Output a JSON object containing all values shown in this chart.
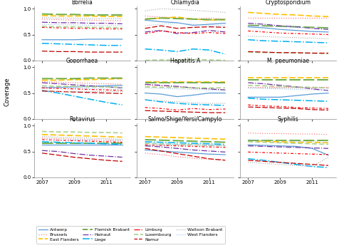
{
  "years": [
    2007,
    2008,
    2009,
    2010,
    2011,
    2012
  ],
  "panels": [
    "Borrelia",
    "Chlamydia",
    "Cryptosporidium",
    "Gonorrhaea",
    "Hepatitis A",
    "M. pneumoniae",
    "Rotavirus",
    "Salmo/Shige/Yersi/Campylo",
    "Syphilis"
  ],
  "provinces": [
    "Antwerp",
    "Brussels",
    "East Flanders",
    "Flemish Brabant",
    "Hainaut",
    "Liege",
    "Limburg",
    "Luxembourg",
    "Namur",
    "Walloon Brabant",
    "West Flanders"
  ],
  "styles": {
    "Antwerp": {
      "color": "#5B9BD5",
      "ls": "-",
      "lw": 0.9,
      "dashes": null
    },
    "Brussels": {
      "color": "#FF7F7F",
      "ls": "dotted",
      "lw": 0.9,
      "dashes": null
    },
    "East Flanders": {
      "color": "#FFC000",
      "ls": "dashed",
      "lw": 1.2,
      "dashes": [
        5,
        2
      ]
    },
    "Flemish Brabant": {
      "color": "#70AD47",
      "ls": "dashed",
      "lw": 1.4,
      "dashes": [
        8,
        2
      ]
    },
    "Hainaut": {
      "color": "#7030A0",
      "ls": "dashdot",
      "lw": 0.9,
      "dashes": null
    },
    "Liege": {
      "color": "#00B0F0",
      "ls": "dashdot",
      "lw": 1.1,
      "dashes": null
    },
    "Limburg": {
      "color": "#FF0000",
      "ls": "dashdot",
      "lw": 0.9,
      "dashes": [
        3,
        2,
        1,
        2
      ]
    },
    "Luxembourg": {
      "color": "#A9D18E",
      "ls": "dashed",
      "lw": 1.2,
      "dashes": [
        4,
        2,
        4,
        2
      ]
    },
    "Namur": {
      "color": "#C00000",
      "ls": "dashed",
      "lw": 0.9,
      "dashes": [
        6,
        2
      ]
    },
    "Walloon Brabant": {
      "color": "#A6A6A6",
      "ls": "dotted",
      "lw": 0.8,
      "dashes": null
    },
    "West Flanders": {
      "color": "#9DC3E6",
      "ls": "dotted",
      "lw": 0.8,
      "dashes": null
    }
  },
  "data": {
    "Borrelia": {
      "Antwerp": [
        0.4,
        0.4,
        0.4,
        0.41,
        0.41,
        0.41
      ],
      "Brussels": [
        0.8,
        0.79,
        0.78,
        0.78,
        0.77,
        0.77
      ],
      "East Flanders": [
        0.87,
        0.86,
        0.86,
        0.86,
        0.85,
        0.85
      ],
      "Flemish Brabant": [
        0.9,
        0.89,
        0.89,
        0.88,
        0.88,
        0.88
      ],
      "Hainaut": [
        0.74,
        0.73,
        0.73,
        0.72,
        0.72,
        0.71
      ],
      "Liege": [
        0.33,
        0.32,
        0.31,
        0.3,
        0.29,
        0.29
      ],
      "Limburg": [
        0.64,
        0.63,
        0.62,
        0.62,
        0.61,
        0.61
      ],
      "Luxembourg": [
        0.66,
        0.65,
        0.65,
        0.64,
        0.64,
        0.63
      ],
      "Namur": [
        0.18,
        0.17,
        0.17,
        0.16,
        0.16,
        0.16
      ],
      "Walloon Brabant": [
        0.83,
        0.82,
        0.82,
        0.81,
        0.81,
        0.81
      ],
      "West Flanders": [
        0.7,
        0.69,
        0.69,
        0.68,
        0.68,
        0.67
      ]
    },
    "Chlamydia": {
      "Antwerp": [
        0.78,
        0.75,
        0.73,
        0.68,
        0.7,
        0.72
      ],
      "Brussels": [
        0.86,
        0.84,
        0.82,
        0.8,
        0.82,
        0.8
      ],
      "East Flanders": [
        0.8,
        0.82,
        0.84,
        0.8,
        0.78,
        0.79
      ],
      "Flemish Brabant": [
        0.8,
        0.82,
        0.81,
        0.8,
        0.79,
        0.79
      ],
      "Hainaut": [
        0.55,
        0.58,
        0.52,
        0.54,
        0.58,
        0.55
      ],
      "Liege": [
        0.22,
        0.2,
        0.17,
        0.22,
        0.2,
        0.12
      ],
      "Limburg": [
        0.52,
        0.57,
        0.54,
        0.52,
        0.54,
        0.52
      ],
      "Luxembourg": [
        0.0,
        0.01,
        0.0,
        0.02,
        0.01,
        0.0
      ],
      "Namur": [
        0.62,
        0.67,
        0.62,
        0.64,
        0.65,
        0.64
      ],
      "Walloon Brabant": [
        0.96,
        1.0,
        0.99,
        0.97,
        0.95,
        0.93
      ],
      "West Flanders": [
        0.67,
        0.7,
        0.72,
        0.7,
        0.67,
        0.68
      ]
    },
    "Cryptosporidium": {
      "Antwerp": [
        0.65,
        0.63,
        0.6,
        0.58,
        0.56,
        0.55
      ],
      "Brussels": [
        0.82,
        0.82,
        0.82,
        0.82,
        0.82,
        0.82
      ],
      "East Flanders": [
        0.93,
        0.91,
        0.89,
        0.88,
        0.86,
        0.85
      ],
      "Flemish Brabant": [
        0.68,
        0.67,
        0.66,
        0.65,
        0.64,
        0.63
      ],
      "Hainaut": [
        0.72,
        0.7,
        0.67,
        0.65,
        0.62,
        0.6
      ],
      "Liege": [
        0.4,
        0.38,
        0.37,
        0.36,
        0.35,
        0.34
      ],
      "Limburg": [
        0.57,
        0.55,
        0.53,
        0.52,
        0.51,
        0.5
      ],
      "Luxembourg": [
        0.16,
        0.15,
        0.15,
        0.14,
        0.14,
        0.13
      ],
      "Namur": [
        0.17,
        0.16,
        0.15,
        0.15,
        0.14,
        0.14
      ],
      "Walloon Brabant": [
        0.47,
        0.46,
        0.45,
        0.44,
        0.43,
        0.42
      ],
      "West Flanders": [
        0.67,
        0.66,
        0.65,
        0.64,
        0.63,
        0.62
      ]
    },
    "Gonorrhaea": {
      "Antwerp": [
        0.6,
        0.61,
        0.62,
        0.63,
        0.64,
        0.65
      ],
      "Brussels": [
        0.72,
        0.71,
        0.7,
        0.69,
        0.68,
        0.67
      ],
      "East Flanders": [
        0.75,
        0.75,
        0.76,
        0.76,
        0.77,
        0.78
      ],
      "Flemish Brabant": [
        0.78,
        0.78,
        0.78,
        0.79,
        0.79,
        0.79
      ],
      "Hainaut": [
        0.7,
        0.68,
        0.66,
        0.64,
        0.62,
        0.6
      ],
      "Liege": [
        0.55,
        0.5,
        0.44,
        0.38,
        0.32,
        0.27
      ],
      "Limburg": [
        0.6,
        0.59,
        0.58,
        0.57,
        0.56,
        0.55
      ],
      "Luxembourg": [
        0.64,
        0.63,
        0.63,
        0.62,
        0.62,
        0.61
      ],
      "Namur": [
        0.54,
        0.53,
        0.52,
        0.51,
        0.5,
        0.49
      ],
      "Walloon Brabant": [
        0.54,
        0.54,
        0.54,
        0.54,
        0.54,
        0.54
      ],
      "West Flanders": [
        0.62,
        0.61,
        0.6,
        0.59,
        0.58,
        0.57
      ]
    },
    "Hepatitis A": {
      "Antwerp": [
        0.5,
        0.48,
        0.43,
        0.46,
        0.5,
        0.5
      ],
      "Brussels": [
        0.65,
        0.64,
        0.62,
        0.6,
        0.58,
        0.56
      ],
      "East Flanders": [
        0.72,
        0.72,
        0.72,
        0.72,
        0.72,
        0.72
      ],
      "Flemish Brabant": [
        0.7,
        0.7,
        0.7,
        0.7,
        0.7,
        0.7
      ],
      "Hainaut": [
        0.67,
        0.65,
        0.63,
        0.6,
        0.58,
        0.56
      ],
      "Liege": [
        0.37,
        0.33,
        0.3,
        0.28,
        0.27,
        0.26
      ],
      "Limburg": [
        0.22,
        0.2,
        0.17,
        0.2,
        0.18,
        0.19
      ],
      "Luxembourg": [
        0.62,
        0.61,
        0.61,
        0.6,
        0.6,
        0.6
      ],
      "Namur": [
        0.16,
        0.15,
        0.14,
        0.13,
        0.12,
        0.12
      ],
      "Walloon Brabant": [
        0.37,
        0.35,
        0.33,
        0.31,
        0.3,
        0.3
      ],
      "West Flanders": [
        0.6,
        0.59,
        0.58,
        0.57,
        0.56,
        0.55
      ]
    },
    "M. pneumoniae": {
      "Antwerp": [
        0.42,
        0.42,
        0.42,
        0.45,
        0.48,
        0.5
      ],
      "Brussels": [
        0.62,
        0.62,
        0.62,
        0.62,
        0.62,
        0.62
      ],
      "East Flanders": [
        0.8,
        0.8,
        0.8,
        0.8,
        0.8,
        0.8
      ],
      "Flemish Brabant": [
        0.75,
        0.75,
        0.75,
        0.75,
        0.75,
        0.75
      ],
      "Hainaut": [
        0.7,
        0.68,
        0.65,
        0.62,
        0.58,
        0.55
      ],
      "Liege": [
        0.4,
        0.38,
        0.37,
        0.36,
        0.35,
        0.34
      ],
      "Limburg": [
        0.27,
        0.25,
        0.24,
        0.22,
        0.21,
        0.2
      ],
      "Luxembourg": [
        0.65,
        0.64,
        0.63,
        0.62,
        0.61,
        0.6
      ],
      "Namur": [
        0.23,
        0.22,
        0.21,
        0.2,
        0.18,
        0.17
      ],
      "Walloon Brabant": [
        0.6,
        0.6,
        0.6,
        0.6,
        0.6,
        0.6
      ],
      "West Flanders": [
        0.6,
        0.59,
        0.58,
        0.57,
        0.56,
        0.55
      ]
    },
    "Rotavirus": {
      "Antwerp": [
        0.63,
        0.63,
        0.63,
        0.63,
        0.63,
        0.63
      ],
      "Brussels": [
        0.76,
        0.75,
        0.74,
        0.73,
        0.72,
        0.71
      ],
      "East Flanders": [
        0.83,
        0.82,
        0.81,
        0.8,
        0.79,
        0.78
      ],
      "Flemish Brabant": [
        0.66,
        0.66,
        0.66,
        0.66,
        0.66,
        0.66
      ],
      "Hainaut": [
        0.52,
        0.5,
        0.46,
        0.43,
        0.41,
        0.39
      ],
      "Liege": [
        0.69,
        0.68,
        0.67,
        0.66,
        0.65,
        0.64
      ],
      "Limburg": [
        0.73,
        0.72,
        0.71,
        0.7,
        0.69,
        0.68
      ],
      "Luxembourg": [
        0.89,
        0.88,
        0.88,
        0.87,
        0.87,
        0.86
      ],
      "Namur": [
        0.47,
        0.43,
        0.39,
        0.36,
        0.33,
        0.31
      ],
      "Walloon Brabant": [
        0.79,
        0.78,
        0.77,
        0.76,
        0.75,
        0.74
      ],
      "West Flanders": [
        0.73,
        0.73,
        0.73,
        0.73,
        0.73,
        0.73
      ]
    },
    "Salmo/Shige/Yersi/Campylo": {
      "Antwerp": [
        0.53,
        0.51,
        0.49,
        0.47,
        0.45,
        0.44
      ],
      "Brussels": [
        0.47,
        0.44,
        0.4,
        0.37,
        0.35,
        0.34
      ],
      "East Flanders": [
        0.79,
        0.78,
        0.77,
        0.76,
        0.75,
        0.74
      ],
      "Flemish Brabant": [
        0.73,
        0.72,
        0.71,
        0.7,
        0.69,
        0.68
      ],
      "Hainaut": [
        0.61,
        0.59,
        0.56,
        0.53,
        0.51,
        0.49
      ],
      "Liege": [
        0.69,
        0.68,
        0.67,
        0.66,
        0.65,
        0.64
      ],
      "Limburg": [
        0.63,
        0.62,
        0.61,
        0.6,
        0.59,
        0.58
      ],
      "Luxembourg": [
        0.66,
        0.65,
        0.64,
        0.63,
        0.62,
        0.61
      ],
      "Namur": [
        0.56,
        0.51,
        0.46,
        0.41,
        0.36,
        0.33
      ],
      "Walloon Brabant": [
        0.63,
        0.63,
        0.63,
        0.63,
        0.63,
        0.63
      ],
      "West Flanders": [
        0.66,
        0.65,
        0.64,
        0.63,
        0.62,
        0.61
      ]
    },
    "Syphilis": {
      "Antwerp": [
        0.63,
        0.62,
        0.61,
        0.6,
        0.56,
        0.43
      ],
      "Brussels": [
        0.86,
        0.85,
        0.85,
        0.84,
        0.84,
        0.83
      ],
      "East Flanders": [
        0.71,
        0.7,
        0.69,
        0.68,
        0.68,
        0.67
      ],
      "Flemish Brabant": [
        0.71,
        0.71,
        0.71,
        0.71,
        0.71,
        0.71
      ],
      "Hainaut": [
        0.61,
        0.6,
        0.59,
        0.58,
        0.57,
        0.56
      ],
      "Liege": [
        0.36,
        0.33,
        0.29,
        0.25,
        0.21,
        0.19
      ],
      "Limburg": [
        0.49,
        0.48,
        0.47,
        0.46,
        0.45,
        0.44
      ],
      "Luxembourg": [
        0.69,
        0.68,
        0.67,
        0.66,
        0.65,
        0.64
      ],
      "Namur": [
        0.33,
        0.31,
        0.29,
        0.27,
        0.25,
        0.23
      ],
      "Walloon Brabant": [
        0.29,
        0.27,
        0.25,
        0.23,
        0.21,
        0.39
      ],
      "West Flanders": [
        0.73,
        0.72,
        0.71,
        0.7,
        0.69,
        0.68
      ]
    }
  },
  "ylim": [
    0.0,
    1.05
  ],
  "yticks": [
    0.0,
    0.5,
    1.0
  ],
  "xticks": [
    2007,
    2009,
    2011
  ],
  "ylabel": "Coverage",
  "legend_entries": [
    {
      "label": "Antwerp",
      "color": "#5B9BD5",
      "ls": "-",
      "lw": 0.9
    },
    {
      "label": "Brussels",
      "color": "#FF7F7F",
      "ls": "dotted",
      "lw": 0.9
    },
    {
      "label": "East Flanders",
      "color": "#FFC000",
      "ls": "dashed",
      "lw": 1.2
    },
    {
      "label": "Flemish Brabant",
      "color": "#70AD47",
      "ls": "dashed",
      "lw": 1.4
    },
    {
      "label": "Hainaut",
      "color": "#7030A0",
      "ls": "dashdot",
      "lw": 0.9
    },
    {
      "label": "Liege",
      "color": "#00B0F0",
      "ls": "dashdot",
      "lw": 1.1
    },
    {
      "label": "Limburg",
      "color": "#FF0000",
      "ls": "dashdot",
      "lw": 0.9
    },
    {
      "label": "Luxembourg",
      "color": "#A9D18E",
      "ls": "dashed",
      "lw": 1.2
    },
    {
      "label": "Namur",
      "color": "#C00000",
      "ls": "dashed",
      "lw": 0.9
    },
    {
      "label": "Walloon Brabant",
      "color": "#A6A6A6",
      "ls": "dotted",
      "lw": 0.8
    },
    {
      "label": "West Flanders",
      "color": "#9DC3E6",
      "ls": "dotted",
      "lw": 0.8
    }
  ]
}
